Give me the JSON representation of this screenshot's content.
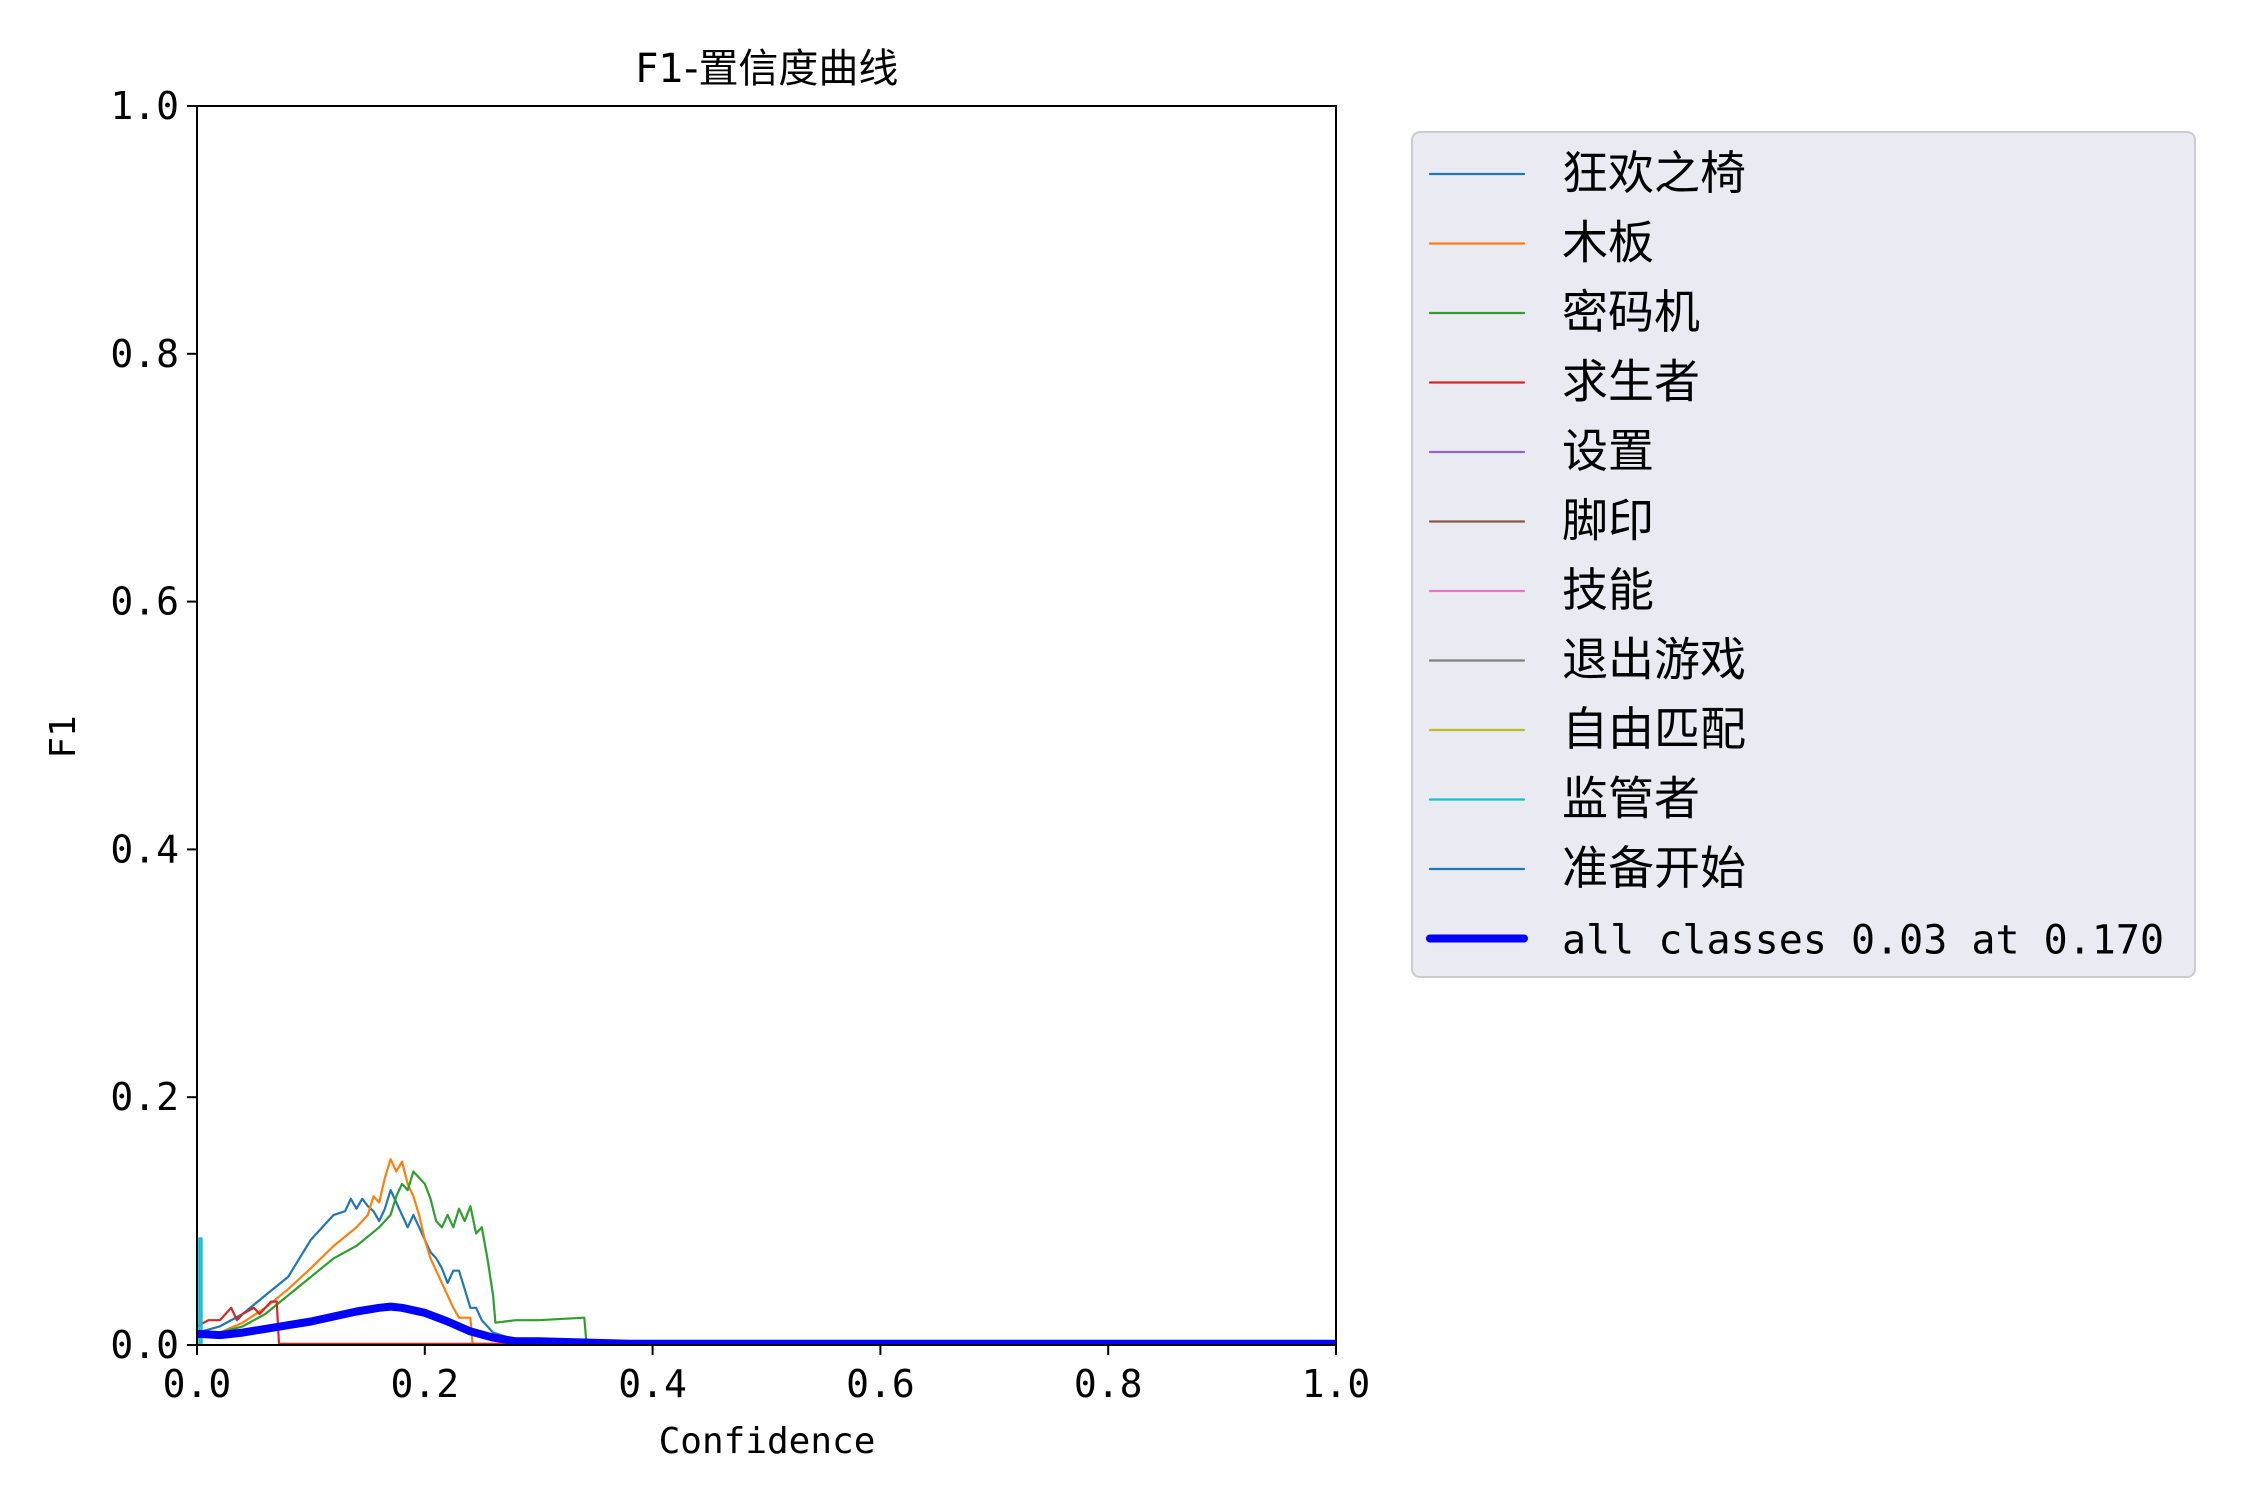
{
  "chart_data": {
    "type": "line",
    "title": "F1-置信度曲线",
    "xlabel": "Confidence",
    "ylabel": "F1",
    "xlim": [
      0,
      1
    ],
    "ylim": [
      0,
      1
    ],
    "x_ticks": [
      "0.0",
      "0.2",
      "0.4",
      "0.6",
      "0.8",
      "1.0"
    ],
    "y_ticks": [
      "0.0",
      "0.2",
      "0.4",
      "0.6",
      "0.8",
      "1.0"
    ],
    "grid": false,
    "legend_position": "outside-right-top",
    "series": [
      {
        "name": "狂欢之椅",
        "color": "#1f77b4",
        "line": "thin",
        "points": [
          [
            0.0,
            0.01
          ],
          [
            0.02,
            0.015
          ],
          [
            0.04,
            0.025
          ],
          [
            0.06,
            0.04
          ],
          [
            0.08,
            0.055
          ],
          [
            0.09,
            0.07
          ],
          [
            0.1,
            0.085
          ],
          [
            0.11,
            0.095
          ],
          [
            0.12,
            0.105
          ],
          [
            0.13,
            0.108
          ],
          [
            0.135,
            0.118
          ],
          [
            0.14,
            0.11
          ],
          [
            0.145,
            0.118
          ],
          [
            0.15,
            0.112
          ],
          [
            0.155,
            0.108
          ],
          [
            0.16,
            0.1
          ],
          [
            0.165,
            0.11
          ],
          [
            0.17,
            0.125
          ],
          [
            0.175,
            0.115
          ],
          [
            0.18,
            0.105
          ],
          [
            0.185,
            0.095
          ],
          [
            0.19,
            0.105
          ],
          [
            0.2,
            0.085
          ],
          [
            0.205,
            0.075
          ],
          [
            0.21,
            0.07
          ],
          [
            0.215,
            0.062
          ],
          [
            0.22,
            0.05
          ],
          [
            0.225,
            0.06
          ],
          [
            0.23,
            0.06
          ],
          [
            0.235,
            0.045
          ],
          [
            0.24,
            0.03
          ],
          [
            0.245,
            0.03
          ],
          [
            0.25,
            0.02
          ],
          [
            0.26,
            0.01
          ],
          [
            0.28,
            0.004
          ],
          [
            0.32,
            0.002
          ],
          [
            0.4,
            0.001
          ],
          [
            1.0,
            0.001
          ]
        ]
      },
      {
        "name": "木板",
        "color": "#ff7f0e",
        "line": "thin",
        "points": [
          [
            0.0,
            0.01
          ],
          [
            0.02,
            0.01
          ],
          [
            0.04,
            0.018
          ],
          [
            0.06,
            0.03
          ],
          [
            0.08,
            0.045
          ],
          [
            0.1,
            0.062
          ],
          [
            0.12,
            0.08
          ],
          [
            0.14,
            0.095
          ],
          [
            0.15,
            0.105
          ],
          [
            0.155,
            0.12
          ],
          [
            0.16,
            0.115
          ],
          [
            0.165,
            0.135
          ],
          [
            0.17,
            0.15
          ],
          [
            0.175,
            0.14
          ],
          [
            0.18,
            0.148
          ],
          [
            0.185,
            0.13
          ],
          [
            0.19,
            0.12
          ],
          [
            0.195,
            0.105
          ],
          [
            0.2,
            0.085
          ],
          [
            0.205,
            0.07
          ],
          [
            0.21,
            0.06
          ],
          [
            0.215,
            0.05
          ],
          [
            0.22,
            0.04
          ],
          [
            0.225,
            0.03
          ],
          [
            0.23,
            0.022
          ],
          [
            0.235,
            0.022
          ],
          [
            0.24,
            0.022
          ],
          [
            0.242,
            0.001
          ],
          [
            1.0,
            0.001
          ]
        ]
      },
      {
        "name": "密码机",
        "color": "#2ca02c",
        "line": "thin",
        "points": [
          [
            0.0,
            0.01
          ],
          [
            0.02,
            0.01
          ],
          [
            0.04,
            0.015
          ],
          [
            0.06,
            0.025
          ],
          [
            0.08,
            0.04
          ],
          [
            0.1,
            0.055
          ],
          [
            0.12,
            0.07
          ],
          [
            0.14,
            0.08
          ],
          [
            0.16,
            0.095
          ],
          [
            0.17,
            0.105
          ],
          [
            0.175,
            0.12
          ],
          [
            0.18,
            0.13
          ],
          [
            0.185,
            0.125
          ],
          [
            0.19,
            0.14
          ],
          [
            0.195,
            0.135
          ],
          [
            0.2,
            0.13
          ],
          [
            0.205,
            0.118
          ],
          [
            0.21,
            0.1
          ],
          [
            0.215,
            0.095
          ],
          [
            0.22,
            0.105
          ],
          [
            0.225,
            0.095
          ],
          [
            0.23,
            0.11
          ],
          [
            0.235,
            0.1
          ],
          [
            0.24,
            0.112
          ],
          [
            0.245,
            0.09
          ],
          [
            0.25,
            0.095
          ],
          [
            0.255,
            0.07
          ],
          [
            0.26,
            0.04
          ],
          [
            0.262,
            0.018
          ],
          [
            0.28,
            0.02
          ],
          [
            0.3,
            0.02
          ],
          [
            0.34,
            0.022
          ],
          [
            0.342,
            0.001
          ],
          [
            1.0,
            0.001
          ]
        ]
      },
      {
        "name": "求生者",
        "color": "#d62728",
        "line": "thin",
        "points": [
          [
            0.0,
            0.015
          ],
          [
            0.01,
            0.02
          ],
          [
            0.02,
            0.02
          ],
          [
            0.025,
            0.025
          ],
          [
            0.03,
            0.03
          ],
          [
            0.035,
            0.02
          ],
          [
            0.04,
            0.025
          ],
          [
            0.05,
            0.03
          ],
          [
            0.055,
            0.025
          ],
          [
            0.06,
            0.03
          ],
          [
            0.065,
            0.035
          ],
          [
            0.07,
            0.035
          ],
          [
            0.072,
            0.001
          ],
          [
            1.0,
            0.001
          ]
        ]
      },
      {
        "name": "设置",
        "color": "#9467bd",
        "line": "thin",
        "points": []
      },
      {
        "name": "脚印",
        "color": "#8c564b",
        "line": "thin",
        "points": []
      },
      {
        "name": "技能",
        "color": "#e377c2",
        "line": "thin",
        "points": []
      },
      {
        "name": "退出游戏",
        "color": "#7f7f7f",
        "line": "thin",
        "points": []
      },
      {
        "name": "自由匹配",
        "color": "#bcbd22",
        "line": "thin",
        "points": []
      },
      {
        "name": "监管者",
        "color": "#17becf",
        "line": "thin",
        "points": [
          [
            0.002,
            0.001
          ],
          [
            0.002,
            0.086
          ],
          [
            0.004,
            0.086
          ],
          [
            0.004,
            0.001
          ]
        ]
      },
      {
        "name": "准备开始",
        "color": "#1f77b4",
        "line": "thin",
        "points": []
      },
      {
        "name": "all classes 0.03 at 0.170",
        "color": "#0000ff",
        "line": "thick",
        "points": [
          [
            0.0,
            0.009
          ],
          [
            0.02,
            0.008
          ],
          [
            0.04,
            0.01
          ],
          [
            0.06,
            0.013
          ],
          [
            0.08,
            0.016
          ],
          [
            0.1,
            0.019
          ],
          [
            0.12,
            0.023
          ],
          [
            0.14,
            0.027
          ],
          [
            0.16,
            0.03
          ],
          [
            0.17,
            0.031
          ],
          [
            0.18,
            0.03
          ],
          [
            0.2,
            0.026
          ],
          [
            0.22,
            0.019
          ],
          [
            0.24,
            0.011
          ],
          [
            0.26,
            0.006
          ],
          [
            0.28,
            0.003
          ],
          [
            0.3,
            0.003
          ],
          [
            0.34,
            0.002
          ],
          [
            0.38,
            0.001
          ],
          [
            1.0,
            0.001
          ]
        ]
      }
    ]
  }
}
